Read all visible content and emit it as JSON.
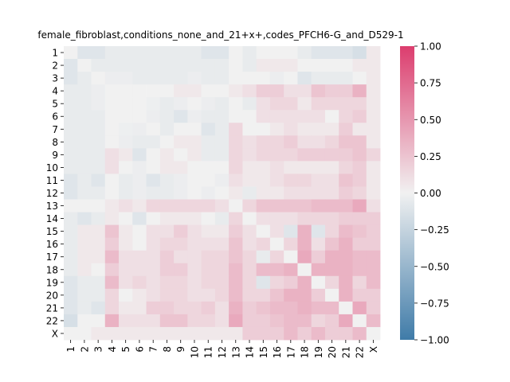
{
  "chart_data": {
    "type": "heatmap",
    "title": "female_fibroblast,conditions_none_and_21+x+,codes_PFCH6-G_and_D529-1",
    "xlabel": "",
    "ylabel": "",
    "row_labels": [
      "1",
      "2",
      "3",
      "4",
      "5",
      "6",
      "7",
      "8",
      "9",
      "10",
      "11",
      "12",
      "13",
      "14",
      "15",
      "16",
      "17",
      "18",
      "19",
      "20",
      "21",
      "22",
      "X"
    ],
    "col_labels": [
      "1",
      "2",
      "3",
      "4",
      "5",
      "6",
      "7",
      "8",
      "9",
      "10",
      "11",
      "12",
      "13",
      "14",
      "15",
      "16",
      "17",
      "18",
      "19",
      "20",
      "21",
      "22",
      "X"
    ],
    "colorbar": {
      "min": -1.0,
      "max": 1.0,
      "ticks": [
        1.0,
        0.75,
        0.5,
        0.25,
        0.0,
        -0.25,
        -0.5,
        -0.75,
        -1.0
      ],
      "tick_labels": [
        "1.00",
        "0.75",
        "0.50",
        "0.25",
        "0.00",
        "−0.25",
        "−0.50",
        "−0.75",
        "−1.00"
      ],
      "low_color": "#3f7ba8",
      "mid_color": "#f1f1f1",
      "high_color": "#dc3d6e"
    },
    "values": [
      [
        0.0,
        -0.1,
        -0.1,
        -0.05,
        -0.05,
        -0.05,
        -0.05,
        -0.05,
        -0.05,
        -0.05,
        -0.1,
        -0.1,
        0.0,
        -0.05,
        0.0,
        0.0,
        0.0,
        -0.05,
        -0.1,
        -0.1,
        -0.1,
        -0.15,
        0.05
      ],
      [
        -0.1,
        0.0,
        -0.05,
        -0.05,
        -0.05,
        -0.05,
        -0.05,
        -0.05,
        -0.05,
        -0.05,
        -0.05,
        -0.05,
        0.0,
        -0.05,
        0.05,
        0.05,
        0.05,
        0.0,
        0.0,
        0.0,
        0.0,
        0.05,
        0.05
      ],
      [
        -0.1,
        -0.05,
        0.0,
        -0.03,
        -0.03,
        -0.05,
        -0.05,
        -0.05,
        -0.05,
        -0.03,
        -0.05,
        -0.05,
        0.0,
        0.0,
        0.0,
        -0.03,
        0.0,
        -0.1,
        -0.05,
        -0.05,
        -0.05,
        0.0,
        0.05
      ],
      [
        -0.05,
        -0.05,
        -0.03,
        0.0,
        0.0,
        0.0,
        0.0,
        0.0,
        0.05,
        0.05,
        0.0,
        0.0,
        0.05,
        0.1,
        0.2,
        0.2,
        0.1,
        0.1,
        0.25,
        0.2,
        0.2,
        0.35,
        0.05
      ],
      [
        -0.05,
        -0.05,
        -0.03,
        0.0,
        0.0,
        0.0,
        -0.02,
        -0.05,
        -0.03,
        0.0,
        -0.03,
        -0.05,
        0.0,
        -0.05,
        0.1,
        0.15,
        0.15,
        0.05,
        0.15,
        0.15,
        0.15,
        0.15,
        0.05
      ],
      [
        -0.05,
        -0.05,
        -0.05,
        0.0,
        0.0,
        0.0,
        -0.03,
        -0.05,
        -0.1,
        -0.03,
        -0.05,
        -0.05,
        0.0,
        0.0,
        0.1,
        0.1,
        0.1,
        0.1,
        0.1,
        0.0,
        0.15,
        0.2,
        0.05
      ],
      [
        -0.05,
        -0.05,
        -0.05,
        0.0,
        -0.02,
        -0.03,
        0.0,
        -0.05,
        0.0,
        0.0,
        -0.1,
        -0.05,
        0.15,
        0.0,
        0.0,
        0.05,
        0.1,
        0.05,
        0.05,
        0.05,
        0.2,
        0.05,
        0.05
      ],
      [
        -0.05,
        -0.05,
        -0.05,
        0.0,
        -0.03,
        -0.05,
        -0.05,
        0.0,
        0.05,
        0.05,
        -0.05,
        -0.05,
        0.15,
        0.1,
        0.15,
        0.15,
        0.2,
        0.1,
        0.1,
        0.15,
        0.25,
        0.25,
        0.05
      ],
      [
        -0.05,
        -0.05,
        -0.05,
        0.1,
        0.05,
        -0.1,
        0.0,
        0.05,
        0.0,
        0.05,
        -0.05,
        -0.05,
        0.15,
        0.1,
        0.15,
        0.15,
        0.15,
        0.2,
        0.2,
        0.2,
        0.2,
        0.25,
        0.15
      ],
      [
        -0.05,
        -0.05,
        -0.05,
        0.1,
        0.0,
        -0.03,
        0.0,
        0.05,
        0.05,
        0.0,
        0.0,
        0.0,
        0.15,
        0.05,
        0.05,
        0.1,
        0.05,
        0.05,
        0.05,
        0.05,
        0.15,
        0.2,
        0.05
      ],
      [
        -0.1,
        -0.05,
        -0.1,
        0.0,
        -0.05,
        -0.03,
        -0.1,
        -0.05,
        -0.03,
        0.0,
        0.0,
        -0.03,
        0.1,
        0.05,
        0.05,
        0.1,
        0.15,
        0.15,
        0.1,
        0.1,
        0.25,
        0.2,
        0.05
      ],
      [
        -0.1,
        -0.05,
        -0.05,
        0.0,
        -0.05,
        -0.03,
        -0.05,
        -0.05,
        -0.03,
        0.0,
        -0.03,
        0.0,
        0.05,
        -0.05,
        0.05,
        0.05,
        0.1,
        0.1,
        0.1,
        0.1,
        0.2,
        0.15,
        0.05
      ],
      [
        0.0,
        0.0,
        0.0,
        0.05,
        0.1,
        0.05,
        0.15,
        0.15,
        0.15,
        0.15,
        0.15,
        0.1,
        0.0,
        0.15,
        0.25,
        0.25,
        0.25,
        0.25,
        0.3,
        0.3,
        0.3,
        0.4,
        0.1
      ],
      [
        -0.05,
        -0.1,
        -0.05,
        0.05,
        0.0,
        -0.1,
        0.0,
        0.05,
        0.05,
        0.05,
        0.0,
        -0.05,
        0.15,
        0.0,
        0.1,
        0.1,
        0.1,
        0.15,
        0.15,
        0.15,
        0.2,
        0.2,
        0.2
      ],
      [
        -0.05,
        0.05,
        0.05,
        0.25,
        0.05,
        0.0,
        0.1,
        0.1,
        0.2,
        0.1,
        0.05,
        0.05,
        0.2,
        0.1,
        0.0,
        0.1,
        -0.1,
        0.35,
        -0.1,
        0.15,
        0.3,
        0.25,
        0.2
      ],
      [
        -0.05,
        0.05,
        0.05,
        0.2,
        0.05,
        0.0,
        0.1,
        0.15,
        0.15,
        0.1,
        0.1,
        0.1,
        0.25,
        0.1,
        0.15,
        0.0,
        0.15,
        0.35,
        0.1,
        0.25,
        0.35,
        0.2,
        0.2
      ],
      [
        -0.05,
        0.05,
        0.05,
        0.3,
        0.1,
        0.1,
        0.1,
        0.2,
        0.1,
        0.1,
        0.15,
        0.15,
        0.25,
        0.15,
        -0.05,
        0.15,
        0.0,
        0.4,
        0.2,
        0.35,
        0.35,
        0.3,
        0.3
      ],
      [
        -0.05,
        0.05,
        0.0,
        0.2,
        0.1,
        0.1,
        0.1,
        0.2,
        0.2,
        0.1,
        0.15,
        0.15,
        0.3,
        0.15,
        0.3,
        0.3,
        0.35,
        0.0,
        0.35,
        0.35,
        0.35,
        0.3,
        0.3
      ],
      [
        -0.1,
        -0.05,
        -0.05,
        0.3,
        0.1,
        0.15,
        0.1,
        0.15,
        0.15,
        0.1,
        0.15,
        0.15,
        0.3,
        0.15,
        -0.1,
        0.15,
        0.2,
        0.35,
        0.0,
        0.15,
        0.35,
        0.15,
        0.3
      ],
      [
        -0.1,
        -0.05,
        -0.05,
        0.15,
        0.0,
        0.05,
        0.1,
        0.15,
        0.15,
        0.1,
        0.1,
        0.15,
        0.3,
        0.15,
        0.15,
        0.25,
        0.35,
        0.35,
        0.2,
        0.0,
        0.35,
        0.2,
        0.2
      ],
      [
        -0.1,
        -0.05,
        -0.1,
        0.15,
        0.05,
        0.05,
        0.2,
        0.2,
        0.15,
        0.15,
        0.2,
        0.1,
        0.35,
        0.2,
        0.25,
        0.3,
        0.3,
        0.35,
        0.3,
        0.3,
        0.0,
        0.4,
        0.2
      ],
      [
        -0.15,
        0.0,
        0.0,
        0.35,
        0.1,
        0.1,
        0.1,
        0.25,
        0.25,
        0.15,
        0.15,
        0.1,
        0.4,
        0.2,
        0.2,
        0.25,
        0.3,
        0.3,
        0.15,
        0.2,
        0.4,
        0.0,
        0.3
      ],
      [
        0.0,
        0.0,
        0.05,
        0.05,
        0.05,
        0.05,
        0.05,
        0.05,
        0.05,
        0.05,
        0.05,
        0.05,
        0.05,
        0.2,
        0.2,
        0.2,
        0.3,
        0.2,
        0.3,
        0.2,
        0.2,
        0.3,
        0.0
      ]
    ]
  }
}
